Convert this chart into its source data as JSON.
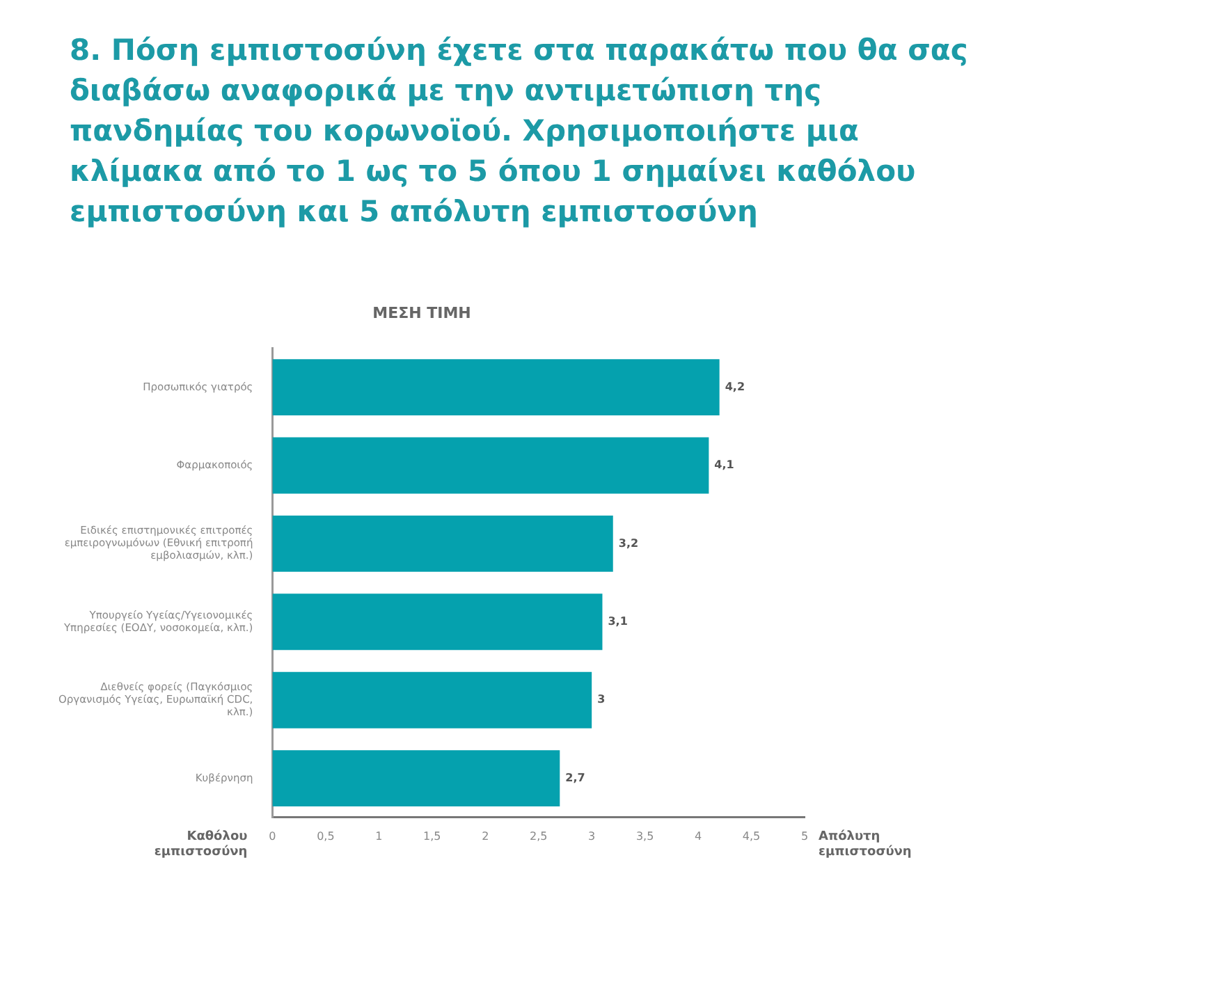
{
  "chart_data": {
    "type": "bar",
    "orientation": "horizontal",
    "title": "8. Πόση εμπιστοσύνη έχετε στα παρακάτω που θα σας διαβάσω αναφορικά με την αντιμετώπιση της πανδημίας του κορωνοϊού. Χρησιμοποιήστε μια κλίμακα από το 1 ως το 5 όπου 1 σημαίνει καθόλου εμπιστοσύνη και 5 απόλυτη εμπιστοσύνη",
    "subtitle": "ΜΕΣΗ ΤΙΜΗ",
    "categories": [
      "Προσωπικός γιατρός",
      "Φαρμακοποιός",
      "Ειδικές επιστημονικές επιτροπές εμπειρογνωμόνων (Εθνική επιτροπή εμβολιασμών, κλπ.)",
      "Υπουργείο Υγείας/Υγειονομικές Υπηρεσίες (ΕΟΔΥ, νοσοκομεία, κλπ.)",
      "Διεθνείς φορείς (Παγκόσμιος Οργανισμός Υγείας, Ευρωπαϊκή CDC, κλπ.)",
      "Κυβέρνηση"
    ],
    "values": [
      4.2,
      4.1,
      3.2,
      3.1,
      3,
      2.7
    ],
    "value_labels": [
      "4,2",
      "4,1",
      "3,2",
      "3,1",
      "3",
      "2,7"
    ],
    "color": "#05a1ae",
    "xlim": [
      0,
      5
    ],
    "xticks": [
      0,
      {
        "value": 0.5,
        "label": "0,5"
      },
      1,
      {
        "value": 1.5,
        "label": "1,5"
      },
      2,
      {
        "value": 2.5,
        "label": "2,5"
      },
      3,
      {
        "value": 3.5,
        "label": "3,5"
      },
      4,
      {
        "value": 4.5,
        "label": "4,5"
      },
      5
    ],
    "annotations": [
      "Καθόλου εμπιστοσύνη",
      "Απόλυτη εμπιστοσύνη"
    ],
    "grid": false,
    "legend": false
  }
}
